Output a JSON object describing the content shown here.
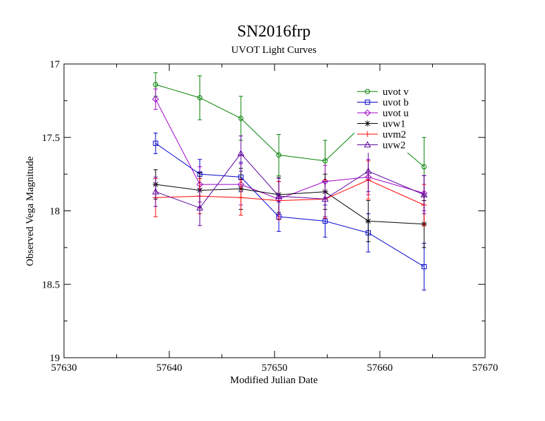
{
  "chart_data": {
    "type": "line",
    "title": "SN2016frp",
    "subtitle": "UVOT Light Curves",
    "xlabel": "Modified Julian Date",
    "ylabel": "Observed Vega Magnitude",
    "xlim": [
      57630,
      57670
    ],
    "ylim": [
      19,
      17
    ],
    "y_inverted": true,
    "x_ticks": [
      "57630",
      "57640",
      "57650",
      "57660",
      "57670"
    ],
    "y_ticks": [
      "17",
      "17.5",
      "18",
      "18.5",
      "19"
    ],
    "grid": false,
    "legend_position": "top-right",
    "series": [
      {
        "name": "uvot v",
        "color": "#008000",
        "marker": "circle",
        "points": [
          [
            57638.7,
            17.14,
            0.08
          ],
          [
            57642.9,
            17.23,
            0.15
          ],
          [
            57646.8,
            17.37,
            0.15
          ],
          [
            57650.4,
            17.62,
            0.14
          ],
          [
            57654.8,
            17.66,
            0.14
          ],
          [
            57658.9,
            17.38,
            0.14
          ],
          [
            57664.2,
            17.7,
            0.2
          ]
        ]
      },
      {
        "name": "uvot b",
        "color": "#0000cc",
        "marker": "square",
        "points": [
          [
            57638.7,
            17.54,
            0.07
          ],
          [
            57642.9,
            17.75,
            0.1
          ],
          [
            57646.8,
            17.77,
            0.1
          ],
          [
            57650.4,
            18.04,
            0.1
          ],
          [
            57654.8,
            18.07,
            0.11
          ],
          [
            57658.9,
            18.15,
            0.13
          ],
          [
            57664.2,
            18.38,
            0.16
          ]
        ]
      },
      {
        "name": "uvot u",
        "color": "#a000c8",
        "marker": "diamond",
        "points": [
          [
            57638.7,
            17.24,
            0.07
          ],
          [
            57642.9,
            17.82,
            0.12
          ],
          [
            57646.8,
            17.82,
            0.14
          ],
          [
            57650.4,
            17.92,
            0.12
          ],
          [
            57654.8,
            17.8,
            0.11
          ],
          [
            57658.9,
            17.77,
            0.12
          ],
          [
            57664.2,
            17.88,
            0.12
          ]
        ]
      },
      {
        "name": "uvw1",
        "color": "#000000",
        "marker": "star",
        "points": [
          [
            57638.7,
            17.82,
            0.1
          ],
          [
            57642.9,
            17.86,
            0.12
          ],
          [
            57646.8,
            17.85,
            0.14
          ],
          [
            57650.4,
            17.89,
            0.12
          ],
          [
            57654.8,
            17.87,
            0.12
          ],
          [
            57658.9,
            18.07,
            0.14
          ],
          [
            57664.2,
            18.09,
            0.16
          ]
        ]
      },
      {
        "name": "uvm2",
        "color": "#ff0000",
        "marker": "plus",
        "points": [
          [
            57638.7,
            17.91,
            0.13
          ],
          [
            57642.9,
            17.9,
            0.12
          ],
          [
            57646.8,
            17.91,
            0.12
          ],
          [
            57650.4,
            17.93,
            0.13
          ],
          [
            57654.8,
            17.92,
            0.13
          ],
          [
            57658.9,
            17.79,
            0.13
          ],
          [
            57664.2,
            17.96,
            0.14
          ]
        ]
      },
      {
        "name": "uvw2",
        "color": "#5a009c",
        "marker": "triangle",
        "points": [
          [
            57638.7,
            17.87,
            0.1
          ],
          [
            57642.9,
            17.98,
            0.12
          ],
          [
            57646.8,
            17.61,
            0.12
          ],
          [
            57650.4,
            17.9,
            0.12
          ],
          [
            57654.8,
            17.92,
            0.12
          ],
          [
            57658.9,
            17.73,
            0.14
          ],
          [
            57664.2,
            17.89,
            0.13
          ]
        ]
      }
    ]
  }
}
